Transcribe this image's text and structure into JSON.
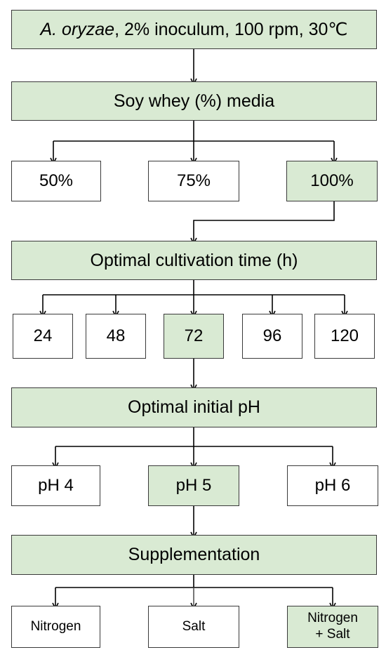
{
  "colors": {
    "selected_fill": "#d9ead3",
    "default_fill": "#ffffff",
    "stroke": "#3a3a3a",
    "connector": "#000000"
  },
  "step1": {
    "organism": "A. oryzae",
    "conditions": ", 2% inoculum, 100 rpm, 30℃"
  },
  "step2": {
    "title": "Soy whey (%) media",
    "options": [
      "50%",
      "75%",
      "100%"
    ],
    "selected_index": 2
  },
  "step3": {
    "title": "Optimal cultivation time (h)",
    "options": [
      "24",
      "48",
      "72",
      "96",
      "120"
    ],
    "selected_index": 2
  },
  "step4": {
    "title": "Optimal initial pH",
    "options": [
      "pH 4",
      "pH 5",
      "pH 6"
    ],
    "selected_index": 1
  },
  "step5": {
    "title": "Supplementation",
    "options": [
      "Nitrogen",
      "Salt",
      "Nitrogen\n+ Salt"
    ],
    "selected_index": 2
  }
}
